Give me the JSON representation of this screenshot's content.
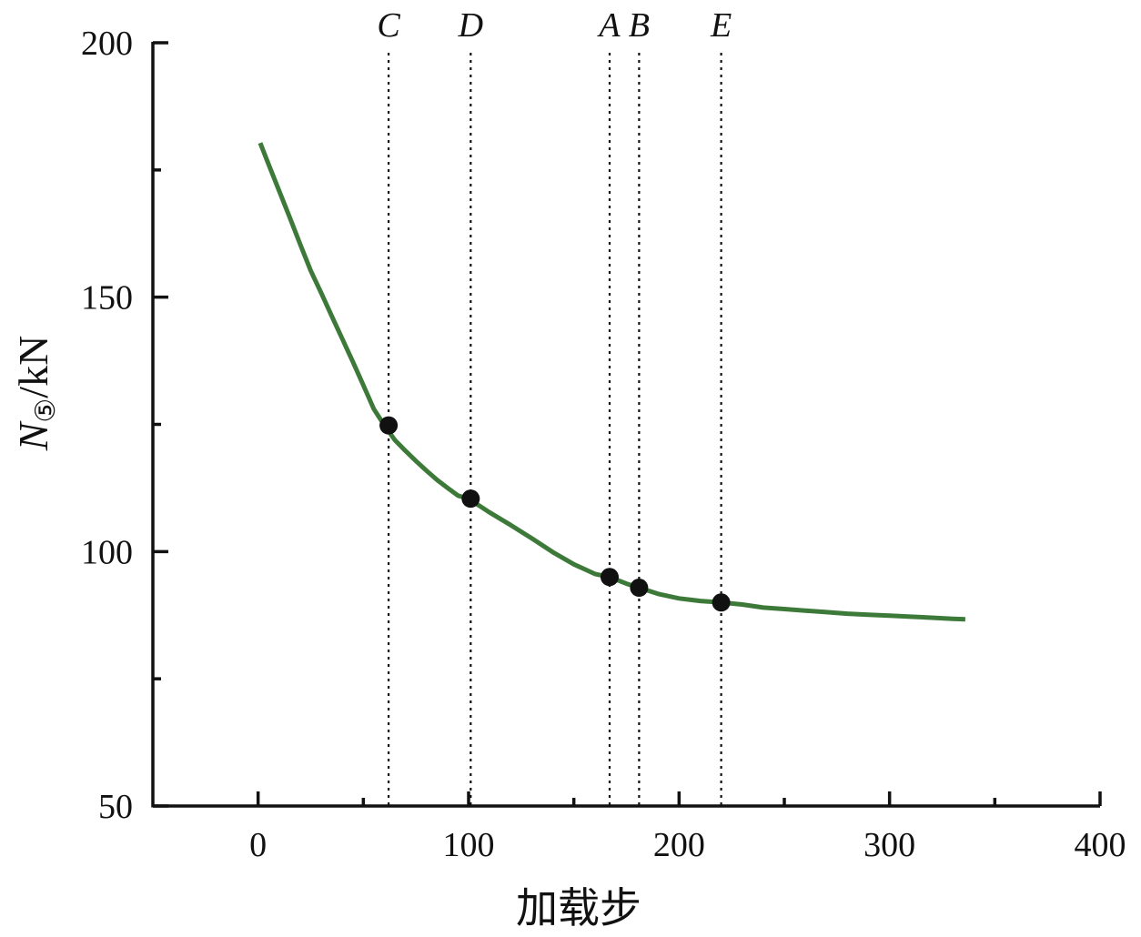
{
  "chart_data": {
    "type": "line",
    "xlabel": "加载步",
    "ylabel": {
      "symbol": "N",
      "subscript": "⑤",
      "unit": "/kN"
    },
    "xlim": [
      -50,
      400
    ],
    "ylim": [
      50,
      200
    ],
    "x_ticks": [
      0,
      100,
      200,
      300,
      400
    ],
    "x_minor_ticks": [
      50,
      150,
      250,
      350
    ],
    "y_ticks": [
      50,
      100,
      150,
      200
    ],
    "y_minor_ticks": [
      75,
      125,
      175
    ],
    "grid": false,
    "series": [
      {
        "color": "#3d7a3a",
        "x": [
          1,
          5,
          10,
          15,
          20,
          25,
          30,
          35,
          40,
          45,
          50,
          55,
          60,
          65,
          70,
          75,
          80,
          85,
          90,
          95,
          100,
          110,
          120,
          130,
          140,
          150,
          160,
          167,
          175,
          181,
          190,
          200,
          210,
          220,
          230,
          240,
          250,
          260,
          270,
          280,
          290,
          300,
          310,
          320,
          330,
          336
        ],
        "y": [
          180.3,
          176.1,
          170.9,
          165.7,
          160.4,
          155.2,
          150.8,
          146.3,
          141.8,
          137.3,
          132.7,
          128.0,
          124.8,
          121.9,
          119.8,
          117.8,
          115.9,
          114.1,
          112.5,
          111.0,
          110.4,
          107.7,
          105.2,
          102.6,
          99.9,
          97.5,
          95.6,
          95.0,
          93.7,
          92.9,
          91.7,
          90.8,
          90.3,
          90.0,
          89.6,
          89.0,
          88.7,
          88.4,
          88.1,
          87.8,
          87.6,
          87.4,
          87.2,
          87.0,
          86.8,
          86.7
        ]
      }
    ],
    "markers": [
      {
        "label": "C",
        "x": 62,
        "y": 124.8
      },
      {
        "label": "D",
        "x": 101,
        "y": 110.4
      },
      {
        "label": "A",
        "x": 167,
        "y": 95.0
      },
      {
        "label": "B",
        "x": 181,
        "y": 92.9
      },
      {
        "label": "E",
        "x": 220,
        "y": 90.0
      }
    ]
  }
}
